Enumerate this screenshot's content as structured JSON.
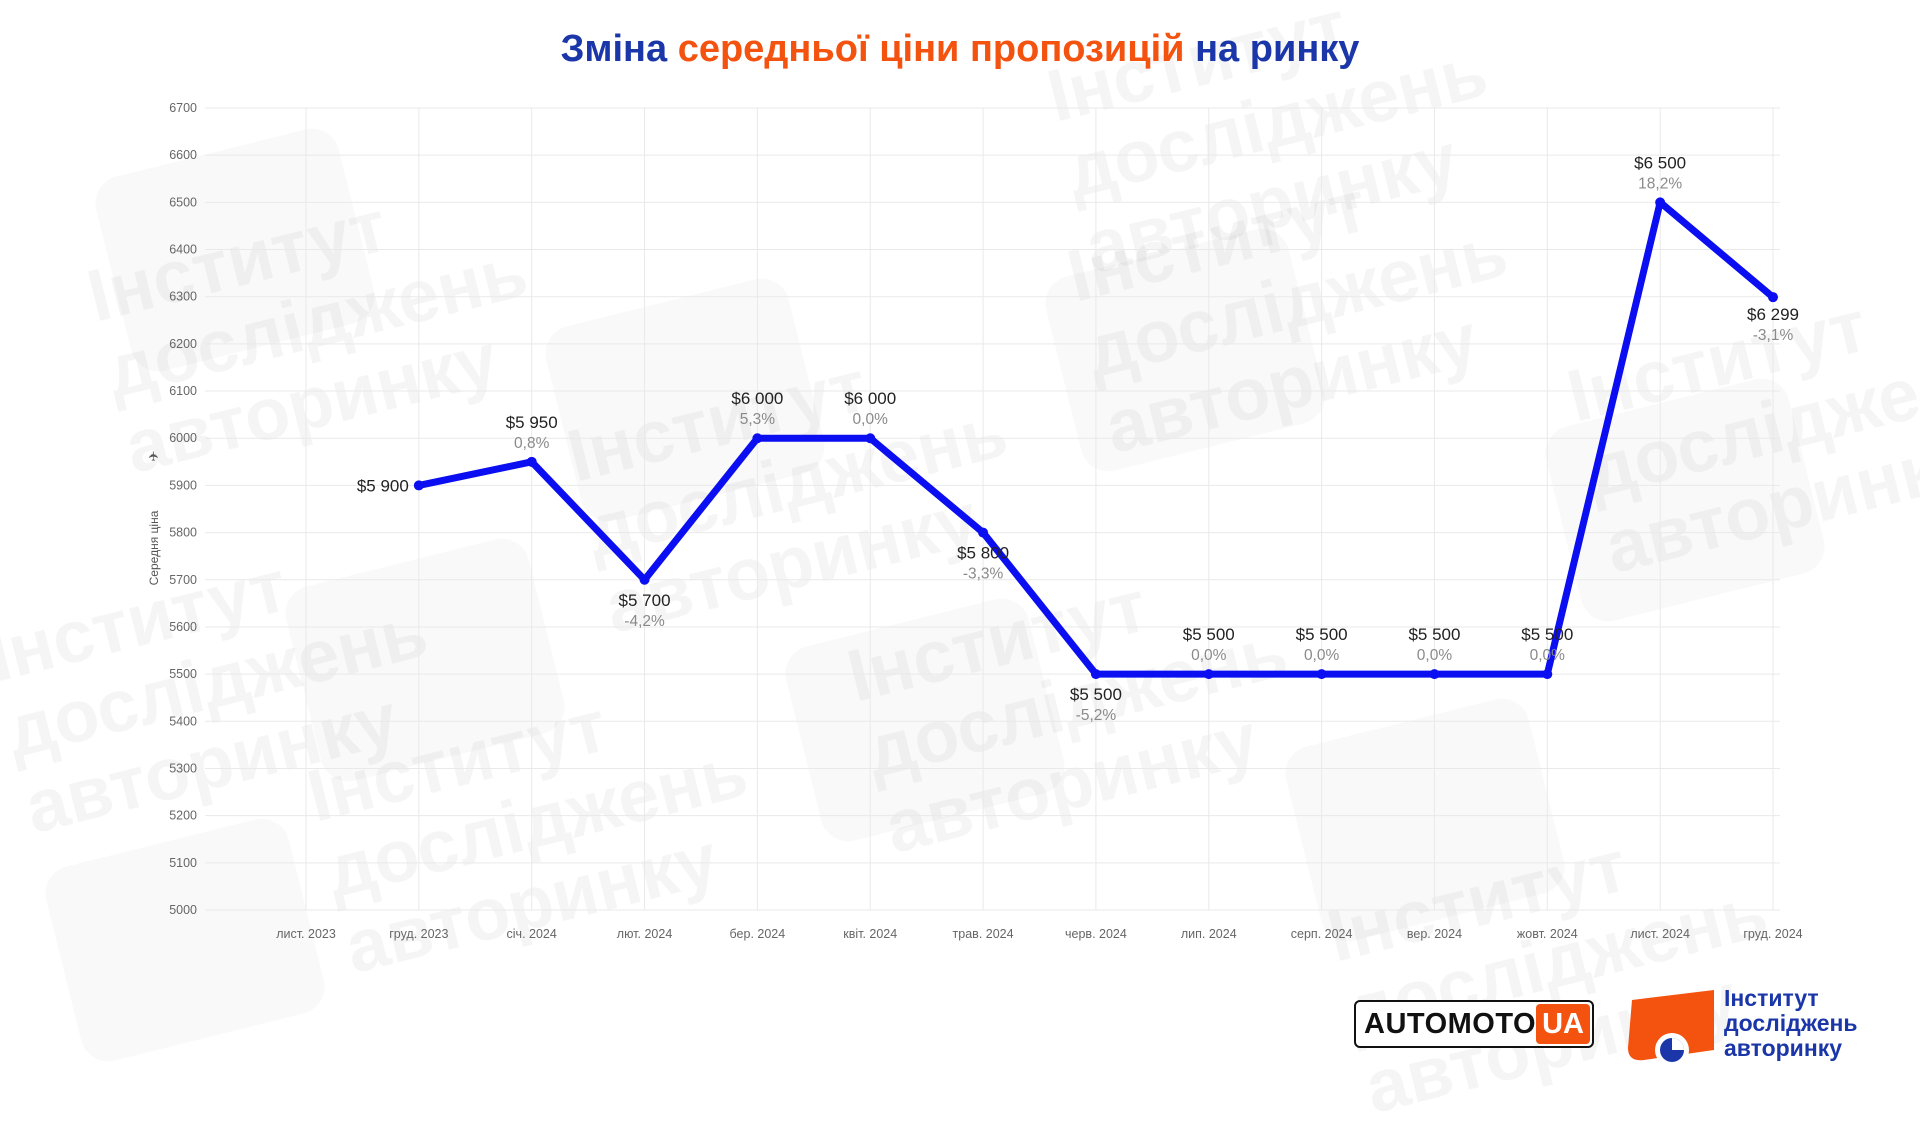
{
  "title": {
    "part1": "Зміна",
    "part2": "середньої ціни пропозицій",
    "part3": "на ринку"
  },
  "colors": {
    "line": "#0a0ef0",
    "title_blue": "#1b36a8",
    "title_orange": "#f4520f",
    "grid": "#e9e9e9"
  },
  "watermark": {
    "text": "Інститут\nдосліджень\nавторинку"
  },
  "chart_data": {
    "type": "line",
    "ylabel": "Середня ціна",
    "ylim": [
      5000,
      6700
    ],
    "yticks": [
      5000,
      5100,
      5200,
      5300,
      5400,
      5500,
      5600,
      5700,
      5800,
      5900,
      6000,
      6100,
      6200,
      6300,
      6400,
      6500,
      6600,
      6700
    ],
    "grid": true,
    "categories": [
      "лист. 2023",
      "груд. 2023",
      "січ. 2024",
      "лют. 2024",
      "бер. 2024",
      "квіт. 2024",
      "трав. 2024",
      "черв. 2024",
      "лип. 2024",
      "серп. 2024",
      "вер. 2024",
      "жовт. 2024",
      "лист. 2024",
      "груд. 2024"
    ],
    "points": [
      {
        "category": "груд. 2023",
        "value": 5900,
        "label": "$5 900",
        "pct": ""
      },
      {
        "category": "січ. 2024",
        "value": 5950,
        "label": "$5 950",
        "pct": "0,8%"
      },
      {
        "category": "лют. 2024",
        "value": 5700,
        "label": "$5 700",
        "pct": "-4,2%"
      },
      {
        "category": "бер. 2024",
        "value": 6000,
        "label": "$6 000",
        "pct": "5,3%"
      },
      {
        "category": "квіт. 2024",
        "value": 6000,
        "label": "$6 000",
        "pct": "0,0%"
      },
      {
        "category": "трав. 2024",
        "value": 5800,
        "label": "$5 800",
        "pct": "-3,3%"
      },
      {
        "category": "черв. 2024",
        "value": 5500,
        "label": "$5 500",
        "pct": "-5,2%"
      },
      {
        "category": "лип. 2024",
        "value": 5500,
        "label": "$5 500",
        "pct": "0,0%"
      },
      {
        "category": "серп. 2024",
        "value": 5500,
        "label": "$5 500",
        "pct": "0,0%"
      },
      {
        "category": "вер. 2024",
        "value": 5500,
        "label": "$5 500",
        "pct": "0,0%"
      },
      {
        "category": "жовт. 2024",
        "value": 5500,
        "label": "$5 500",
        "pct": "0,0%"
      },
      {
        "category": "лист. 2024",
        "value": 6500,
        "label": "$6 500",
        "pct": "18,2%"
      },
      {
        "category": "груд. 2024",
        "value": 6299,
        "label": "$6 299",
        "pct": "-3,1%"
      }
    ]
  },
  "logos": {
    "automoto_main": "AUTOMOTO",
    "automoto_ua": "UA",
    "institute_line1": "Інститут",
    "institute_line2": "досліджень",
    "institute_line3": "авторинку"
  }
}
